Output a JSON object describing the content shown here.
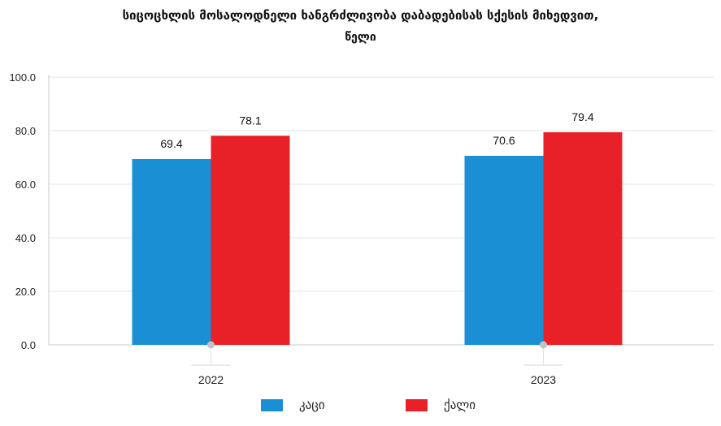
{
  "chart_data": {
    "type": "bar",
    "title": "სიცოცხლის მოსალოდნელი ხანგრძლივობა დაბადებისას სქესის მიხედვით,",
    "subtitle": "წელი",
    "categories": [
      "2022",
      "2023"
    ],
    "series": [
      {
        "name": "კაცი",
        "color": "#1a8fd4",
        "values": [
          69.4,
          70.6
        ],
        "labels": [
          "69.4",
          "70.6"
        ]
      },
      {
        "name": "ქალი",
        "color": "#e82128",
        "values": [
          78.1,
          79.4
        ],
        "labels": [
          "78.1",
          "79.4"
        ]
      }
    ],
    "ylim": [
      0,
      100
    ],
    "yticks": [
      "0.0",
      "20.0",
      "40.0",
      "60.0",
      "80.0",
      "100.0"
    ],
    "grid": true,
    "legend_position": "bottom"
  }
}
